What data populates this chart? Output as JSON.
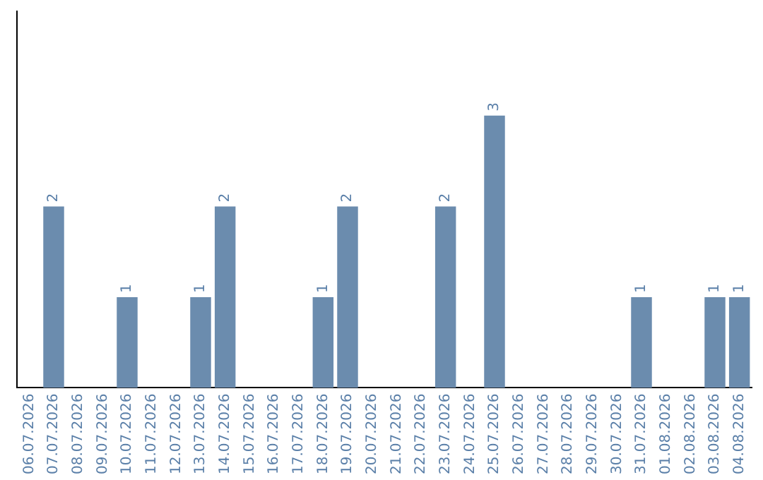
{
  "chart_data": {
    "type": "bar",
    "categories": [
      "06.07.2026",
      "07.07.2026",
      "08.07.2026",
      "09.07.2026",
      "10.07.2026",
      "11.07.2026",
      "12.07.2026",
      "13.07.2026",
      "14.07.2026",
      "15.07.2026",
      "16.07.2026",
      "17.07.2026",
      "18.07.2026",
      "19.07.2026",
      "20.07.2026",
      "21.07.2026",
      "22.07.2026",
      "23.07.2026",
      "24.07.2026",
      "25.07.2026",
      "26.07.2026",
      "27.07.2026",
      "28.07.2026",
      "29.07.2026",
      "30.07.2026",
      "31.07.2026",
      "01.08.2026",
      "02.08.2026",
      "03.08.2026",
      "04.08.2026"
    ],
    "values": [
      0,
      2,
      0,
      0,
      1,
      0,
      0,
      1,
      2,
      0,
      0,
      0,
      1,
      2,
      0,
      0,
      0,
      2,
      0,
      3,
      0,
      0,
      0,
      0,
      0,
      1,
      0,
      0,
      1,
      1
    ],
    "value_labels": [
      null,
      "2",
      null,
      null,
      "1",
      null,
      null,
      "1",
      "2",
      null,
      null,
      null,
      "1",
      "2",
      null,
      null,
      null,
      "2",
      null,
      "3",
      null,
      null,
      null,
      null,
      null,
      "1",
      null,
      null,
      "1",
      "1"
    ],
    "color": "#6b8cae",
    "ylim": [
      0,
      4.15
    ],
    "tick_labels": "x",
    "grid": false,
    "legend": false
  }
}
